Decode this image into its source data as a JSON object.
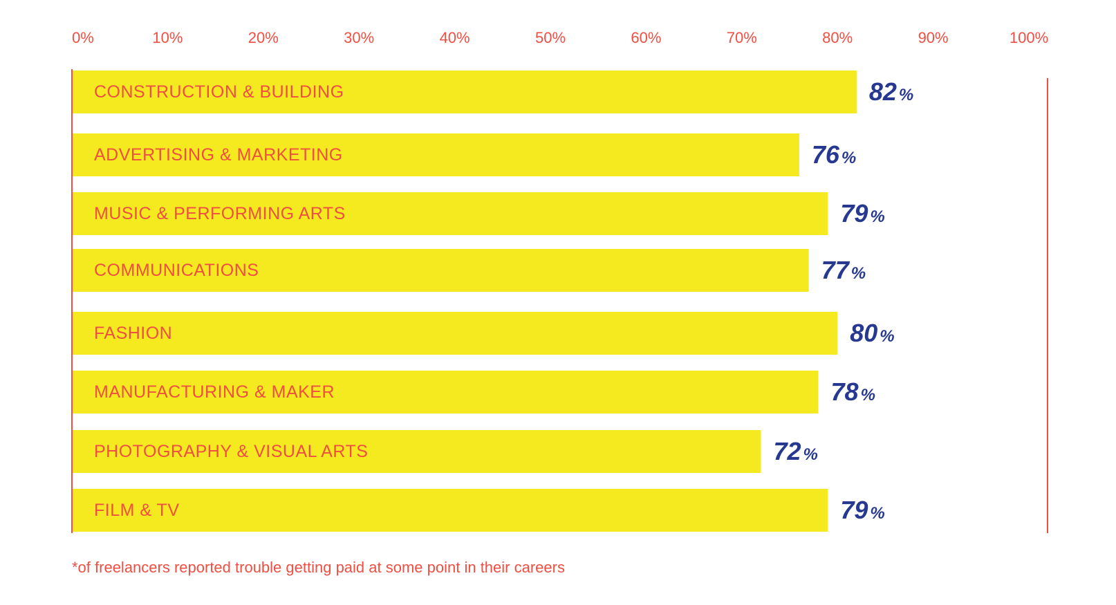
{
  "colors": {
    "accent_red": "#ef4f43",
    "bar_yellow": "#f4ea1f",
    "value_blue": "#26388f",
    "background": "#ffffff"
  },
  "chart_data": {
    "type": "bar",
    "orientation": "horizontal",
    "categories": [
      "CONSTRUCTION & BUILDING",
      "ADVERTISING & MARKETING",
      "MUSIC & PERFORMING ARTS",
      "COMMUNICATIONS",
      "FASHION",
      "MANUFACTURING & MAKER",
      "PHOTOGRAPHY & VISUAL ARTS",
      "FILM & TV"
    ],
    "values": [
      82,
      76,
      79,
      77,
      80,
      78,
      72,
      79
    ],
    "value_labels": [
      "82",
      "76",
      "79",
      "77",
      "80",
      "78",
      "72",
      "79"
    ],
    "value_unit": "%",
    "x_ticks": [
      "0%",
      "10%",
      "20%",
      "30%",
      "40%",
      "50%",
      "60%",
      "70%",
      "80%",
      "90%",
      "100%"
    ],
    "xlim": [
      0,
      100
    ],
    "axis_position": "top",
    "grid": false,
    "legend": "none"
  },
  "footnote": "*of freelancers reported trouble getting paid at some point in their careers"
}
